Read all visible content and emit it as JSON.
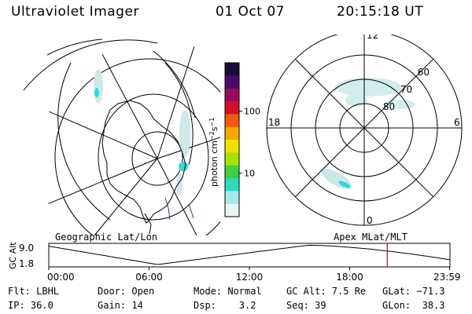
{
  "header": {
    "title": "Ultraviolet Imager",
    "date": "01 Oct 07",
    "time": "20:15:18 UT"
  },
  "colorbar": {
    "unit": "photon cm",
    "unit_exp1": "−2",
    "unit_s": "s",
    "unit_exp2": "−1",
    "ticks": [
      {
        "label": "100",
        "value": 100
      },
      {
        "label": "10",
        "value": 10
      }
    ],
    "range": [
      2,
      600
    ],
    "colors": [
      "#1a0a3a",
      "#4b0a6a",
      "#9a0a5a",
      "#d0102a",
      "#f25a10",
      "#f7a800",
      "#f0e000",
      "#a8e000",
      "#40d040",
      "#30d8c0",
      "#a8e8e8",
      "#e8f4f4"
    ]
  },
  "polar_plot": {
    "mlt_labels": {
      "top": "12",
      "left": "18",
      "right": "6",
      "bottom": "0"
    },
    "lat_labels": [
      {
        "label": "60",
        "value": 60
      },
      {
        "label": "70",
        "value": 70
      },
      {
        "label": "80",
        "value": 80
      }
    ]
  },
  "timeline": {
    "label_geo": "Geographic Lat/Lon",
    "label_apex": "Apex MLat/MLT",
    "ylabel": "GC Alt",
    "y_ticks": [
      "9.0",
      "1.8"
    ],
    "x_ticks": [
      "00:00",
      "06:00",
      "12:00",
      "18:00",
      "23:59"
    ],
    "current_time_hours": 20.25,
    "marker_color": "#e00000"
  },
  "info": {
    "rows": [
      [
        {
          "text": "Flt: LBHL"
        },
        {
          "text": "Door: Open"
        },
        {
          "text": "Mode: Normal"
        },
        {
          "text": "GC Alt: 7.5 Re"
        },
        {
          "text": "GLat: −71.3"
        }
      ],
      [
        {
          "text": "IP: 36.0"
        },
        {
          "text": "Gain: 14"
        },
        {
          "text": "Dsp:    3.2"
        },
        {
          "text": "Seq: 39"
        },
        {
          "text": "GLon:  38.3"
        }
      ]
    ]
  }
}
